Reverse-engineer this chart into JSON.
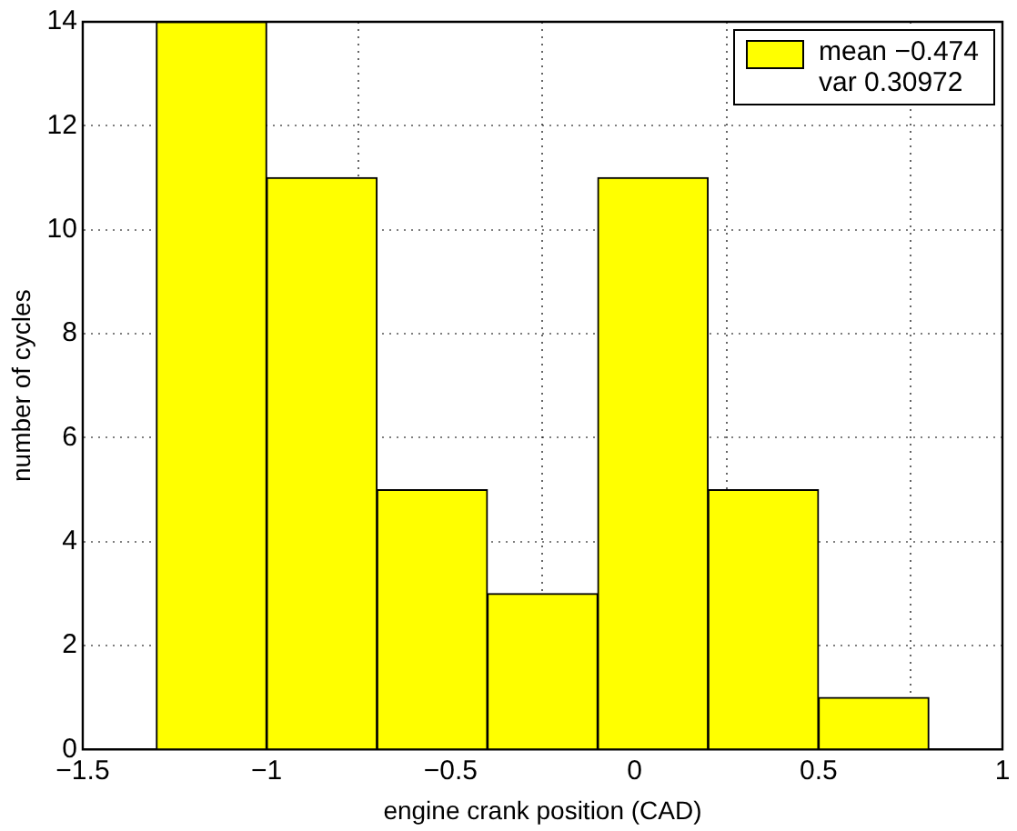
{
  "chart_data": {
    "type": "histogram",
    "xlabel": "engine crank position (CAD)",
    "ylabel": "number of cycles",
    "bins": [
      -1.3,
      -1.0,
      -0.7,
      -0.4,
      -0.1,
      0.2,
      0.5,
      0.8
    ],
    "series": [
      {
        "name": "mean −0.474\nvar 0.30972",
        "color": "#ffff00",
        "values": [
          14,
          11,
          5,
          3,
          11,
          5,
          1
        ]
      }
    ],
    "xlim": [
      -1.5,
      1
    ],
    "xticks": [
      -1.5,
      -1,
      -0.5,
      0,
      0.5,
      1
    ],
    "ylim": [
      0,
      14
    ],
    "yticks": [
      0,
      2,
      4,
      6,
      8,
      10,
      12,
      14
    ],
    "grid": true,
    "legend": "top right"
  }
}
